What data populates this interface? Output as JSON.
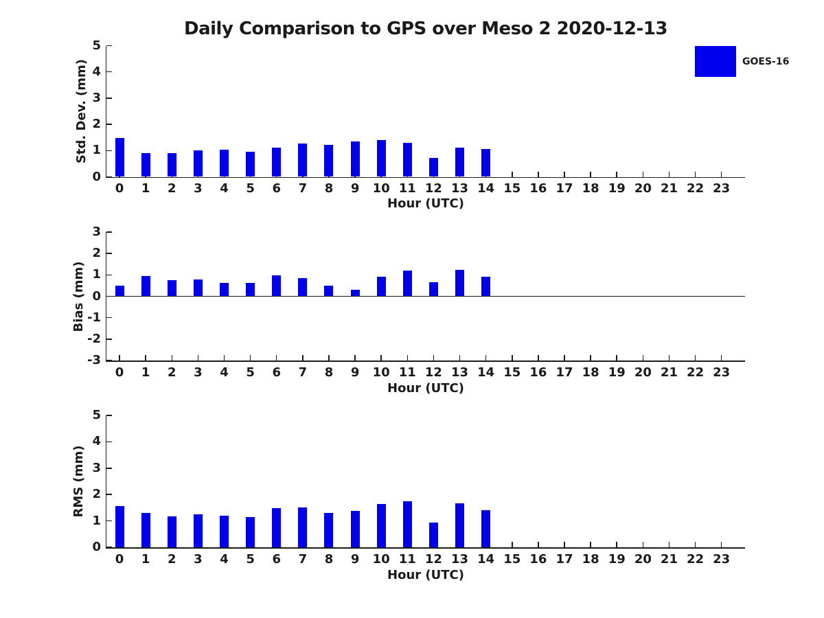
{
  "title": "Daily Comparison to GPS over Meso 2 2020-12-13",
  "legend": {
    "label": "GOES-16",
    "color": "#0000ee",
    "position": "top-right"
  },
  "colors": {
    "bar": "#0000ee",
    "axis": "#1a1a1a",
    "text": "#1a1a1a",
    "background": "#ffffff"
  },
  "chart_data": [
    {
      "type": "bar",
      "title": "Daily Comparison to GPS over Meso 2 2020-12-13",
      "xlabel": "Hour (UTC)",
      "ylabel": "Std. Dev. (mm)",
      "categories": [
        "0",
        "1",
        "2",
        "3",
        "4",
        "5",
        "6",
        "7",
        "8",
        "9",
        "10",
        "11",
        "12",
        "13",
        "14",
        "15",
        "16",
        "17",
        "18",
        "19",
        "20",
        "21",
        "22",
        "23"
      ],
      "series": [
        {
          "name": "GOES-16",
          "values": [
            1.47,
            0.91,
            0.91,
            1.01,
            1.04,
            0.96,
            1.1,
            1.26,
            1.21,
            1.35,
            1.4,
            1.29,
            0.72,
            1.1,
            1.06
          ]
        }
      ],
      "ylim": [
        0,
        5
      ],
      "yticks": [
        0,
        1,
        2,
        3,
        4,
        5
      ],
      "xlim": [
        -0.5,
        23.9
      ],
      "grid": false,
      "legend_entries": [
        "GOES-16"
      ],
      "legend_position": "top-right",
      "zero_line": false
    },
    {
      "type": "bar",
      "title": "",
      "xlabel": "Hour (UTC)",
      "ylabel": "Bias (mm)",
      "categories": [
        "0",
        "1",
        "2",
        "3",
        "4",
        "5",
        "6",
        "7",
        "8",
        "9",
        "10",
        "11",
        "12",
        "13",
        "14",
        "15",
        "16",
        "17",
        "18",
        "19",
        "20",
        "21",
        "22",
        "23"
      ],
      "series": [
        {
          "name": "GOES-16",
          "values": [
            0.51,
            0.95,
            0.74,
            0.8,
            0.64,
            0.64,
            0.97,
            0.86,
            0.49,
            0.31,
            0.93,
            1.2,
            0.65,
            1.22,
            0.92
          ]
        }
      ],
      "ylim": [
        -3,
        3
      ],
      "yticks": [
        -3,
        -2,
        -1,
        0,
        1,
        2,
        3
      ],
      "xlim": [
        -0.5,
        23.9
      ],
      "grid": false,
      "legend_entries": [],
      "zero_line": true
    },
    {
      "type": "bar",
      "title": "",
      "xlabel": "Hour (UTC)",
      "ylabel": "RMS (mm)",
      "categories": [
        "0",
        "1",
        "2",
        "3",
        "4",
        "5",
        "6",
        "7",
        "8",
        "9",
        "10",
        "11",
        "12",
        "13",
        "14",
        "15",
        "16",
        "17",
        "18",
        "19",
        "20",
        "21",
        "22",
        "23"
      ],
      "series": [
        {
          "name": "GOES-16",
          "values": [
            1.56,
            1.3,
            1.17,
            1.26,
            1.2,
            1.14,
            1.48,
            1.51,
            1.3,
            1.38,
            1.64,
            1.74,
            0.93,
            1.67,
            1.41
          ]
        }
      ],
      "ylim": [
        0,
        5
      ],
      "yticks": [
        0,
        1,
        2,
        3,
        4,
        5
      ],
      "xlim": [
        -0.5,
        23.9
      ],
      "grid": false,
      "legend_entries": [],
      "zero_line": false
    }
  ]
}
